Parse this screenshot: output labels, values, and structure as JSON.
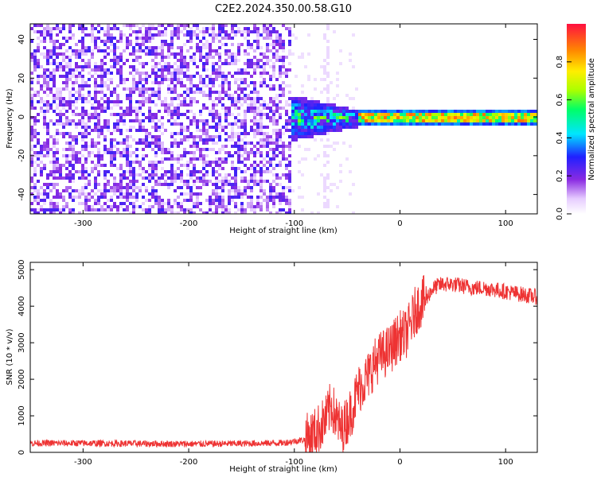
{
  "title": "C2E2.2024.350.00.58.G10",
  "chart_data": [
    {
      "type": "heatmap",
      "name": "spectrogram",
      "xlabel": "Height of straight line (km)",
      "ylabel": "Frequency (Hz)",
      "xlim": [
        -350,
        130
      ],
      "ylim": [
        -50,
        48
      ],
      "xticks": [
        -300,
        -200,
        -100,
        0,
        100
      ],
      "yticks": [
        -40,
        -20,
        0,
        20,
        40
      ],
      "colorbar": {
        "label": "Normalized spectral amplitude",
        "range": [
          0,
          1
        ],
        "ticks": [
          0.0,
          0.2,
          0.4,
          0.6,
          0.8
        ]
      },
      "regions": [
        {
          "description": "noise",
          "x": [
            -350,
            -105
          ],
          "freq": [
            -50,
            48
          ],
          "amplitude": 0.15
        },
        {
          "description": "transition",
          "x": [
            -105,
            -40
          ],
          "freq": [
            -12,
            12
          ],
          "amplitude": 0.35
        },
        {
          "description": "signal ridge",
          "x": [
            -40,
            130
          ],
          "freq": [
            -1,
            3
          ],
          "amplitude": 0.6
        }
      ],
      "grid": false
    },
    {
      "type": "line",
      "name": "snr",
      "xlabel": "Height of straight line (km)",
      "ylabel": "SNR (10 * v/v)",
      "xlim": [
        -350,
        130
      ],
      "ylim": [
        0,
        5200
      ],
      "xticks": [
        -300,
        -200,
        -100,
        0,
        100
      ],
      "yticks": [
        0,
        1000,
        2000,
        3000,
        4000,
        5000
      ],
      "series_color": "#ee3333",
      "x": [
        -350,
        -300,
        -250,
        -200,
        -150,
        -110,
        -90,
        -80,
        -70,
        -65,
        -60,
        -55,
        -50,
        -45,
        -40,
        -35,
        -30,
        -25,
        -20,
        -15,
        -10,
        -5,
        0,
        5,
        10,
        15,
        20,
        25,
        30,
        35,
        40,
        50,
        60,
        70,
        80,
        90,
        100,
        110,
        120,
        130
      ],
      "y": [
        250,
        250,
        240,
        230,
        240,
        260,
        350,
        550,
        900,
        1300,
        900,
        600,
        900,
        1200,
        1700,
        1900,
        2100,
        2400,
        2600,
        2700,
        2800,
        3000,
        3200,
        3200,
        3500,
        3900,
        4100,
        4200,
        4450,
        4550,
        4600,
        4600,
        4550,
        4500,
        4500,
        4450,
        4400,
        4350,
        4300,
        4250
      ],
      "grid": false
    }
  ]
}
